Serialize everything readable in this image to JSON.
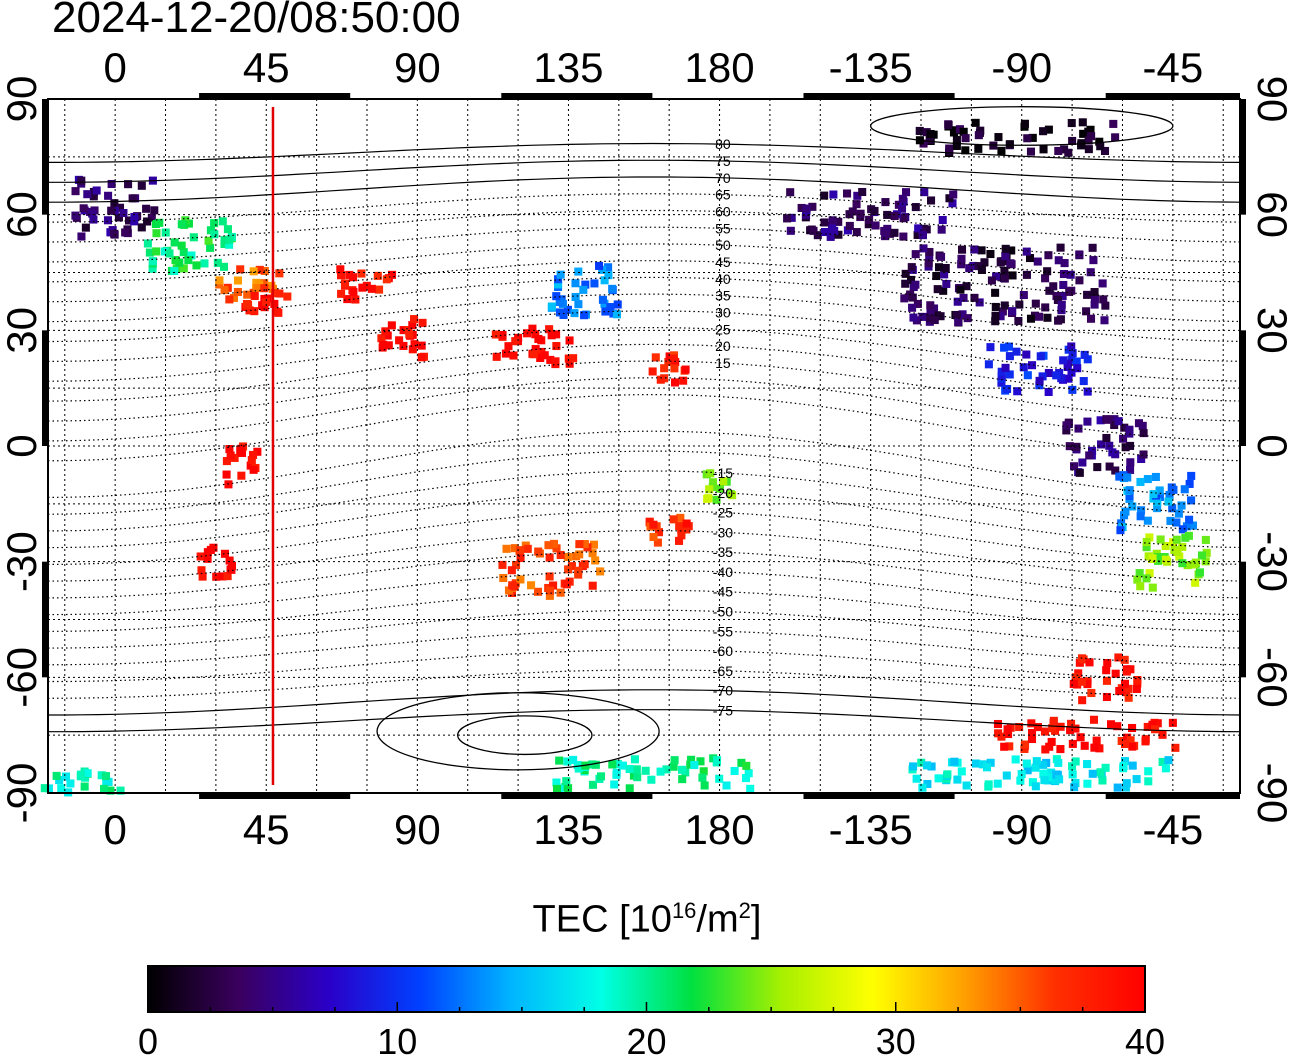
{
  "title": "2024-12-20/08:50:00",
  "map": {
    "lon_ticks_top": [
      "0",
      "45",
      "90",
      "135",
      "180",
      "-135",
      "-90",
      "-45"
    ],
    "lon_ticks_bottom": [
      "0",
      "45",
      "90",
      "135",
      "180",
      "-135",
      "-90",
      "-45"
    ],
    "lat_ticks_left": [
      "90",
      "60",
      "30",
      "0",
      "-30",
      "-60",
      "-90"
    ],
    "lat_ticks_right": [
      "90",
      "60",
      "30",
      "0",
      "-30",
      "-60",
      "-90"
    ],
    "lon_range": [
      -20,
      335
    ],
    "lat_range": [
      -90,
      90
    ],
    "terminator_longitude": 47,
    "terminator_color": "#e00000",
    "contour_labels_north": [
      "80",
      "75",
      "70",
      "65",
      "60",
      "55",
      "50",
      "45",
      "40",
      "35",
      "30",
      "25",
      "20",
      "15"
    ],
    "contour_labels_south": [
      "-15",
      "-20",
      "-25",
      "-30",
      "-35",
      "-40",
      "-45",
      "-50",
      "-55",
      "-60",
      "-65",
      "-70",
      "-75"
    ]
  },
  "colorbar": {
    "label_main": "TEC  [10",
    "label_exp": "16",
    "label_unit": "/m",
    "label_unit_exp": "2",
    "label_close": "]",
    "ticks": [
      "0",
      "10",
      "20",
      "30",
      "40"
    ],
    "range": [
      0,
      40
    ],
    "colors": [
      "#000000",
      "#3a005e",
      "#2a00c8",
      "#0040ff",
      "#00b4ff",
      "#00ffe6",
      "#00e040",
      "#a8f000",
      "#ffff00",
      "#ffa000",
      "#ff3000",
      "#ff0000"
    ]
  },
  "tec_regions": [
    {
      "lon": 0,
      "lat": 62,
      "w": 24,
      "h": 16,
      "tec": 4
    },
    {
      "lon": 22,
      "lat": 52,
      "w": 26,
      "h": 14,
      "tec": 21
    },
    {
      "lon": 40,
      "lat": 42,
      "w": 18,
      "h": 8,
      "tec": 35
    },
    {
      "lon": 45,
      "lat": 38,
      "w": 14,
      "h": 8,
      "tec": 39
    },
    {
      "lon": 75,
      "lat": 42,
      "w": 16,
      "h": 8,
      "tec": 39
    },
    {
      "lon": 85,
      "lat": 28,
      "w": 14,
      "h": 10,
      "tec": 40
    },
    {
      "lon": 140,
      "lat": 40,
      "w": 20,
      "h": 14,
      "tec": 13
    },
    {
      "lon": 125,
      "lat": 26,
      "w": 24,
      "h": 10,
      "tec": 40
    },
    {
      "lon": 165,
      "lat": 20,
      "w": 10,
      "h": 8,
      "tec": 38
    },
    {
      "lon": 38,
      "lat": -5,
      "w": 10,
      "h": 10,
      "tec": 40
    },
    {
      "lon": 30,
      "lat": -30,
      "w": 10,
      "h": 8,
      "tec": 40
    },
    {
      "lon": 130,
      "lat": -32,
      "w": 30,
      "h": 14,
      "tec": 36
    },
    {
      "lon": 165,
      "lat": -22,
      "w": 12,
      "h": 8,
      "tec": 37
    },
    {
      "lon": 180,
      "lat": -10,
      "w": 8,
      "h": 8,
      "tec": 25
    },
    {
      "lon": 225,
      "lat": 60,
      "w": 50,
      "h": 12,
      "tec": 4
    },
    {
      "lon": 265,
      "lat": 42,
      "w": 60,
      "h": 20,
      "tec": 3
    },
    {
      "lon": 275,
      "lat": 20,
      "w": 30,
      "h": 12,
      "tec": 9
    },
    {
      "lon": 295,
      "lat": 0,
      "w": 24,
      "h": 14,
      "tec": 4
    },
    {
      "lon": 310,
      "lat": -15,
      "w": 22,
      "h": 16,
      "tec": 13
    },
    {
      "lon": 315,
      "lat": -30,
      "w": 22,
      "h": 14,
      "tec": 25
    },
    {
      "lon": 295,
      "lat": -60,
      "w": 20,
      "h": 12,
      "tec": 39
    },
    {
      "lon": 290,
      "lat": -75,
      "w": 55,
      "h": 8,
      "tec": 39
    },
    {
      "lon": 275,
      "lat": -85,
      "w": 80,
      "h": 8,
      "tec": 17
    },
    {
      "lon": 160,
      "lat": -85,
      "w": 60,
      "h": 8,
      "tec": 20
    },
    {
      "lon": -10,
      "lat": -87,
      "w": 24,
      "h": 6,
      "tec": 19
    },
    {
      "lon": 268,
      "lat": 80,
      "w": 60,
      "h": 8,
      "tec": 1
    }
  ]
}
